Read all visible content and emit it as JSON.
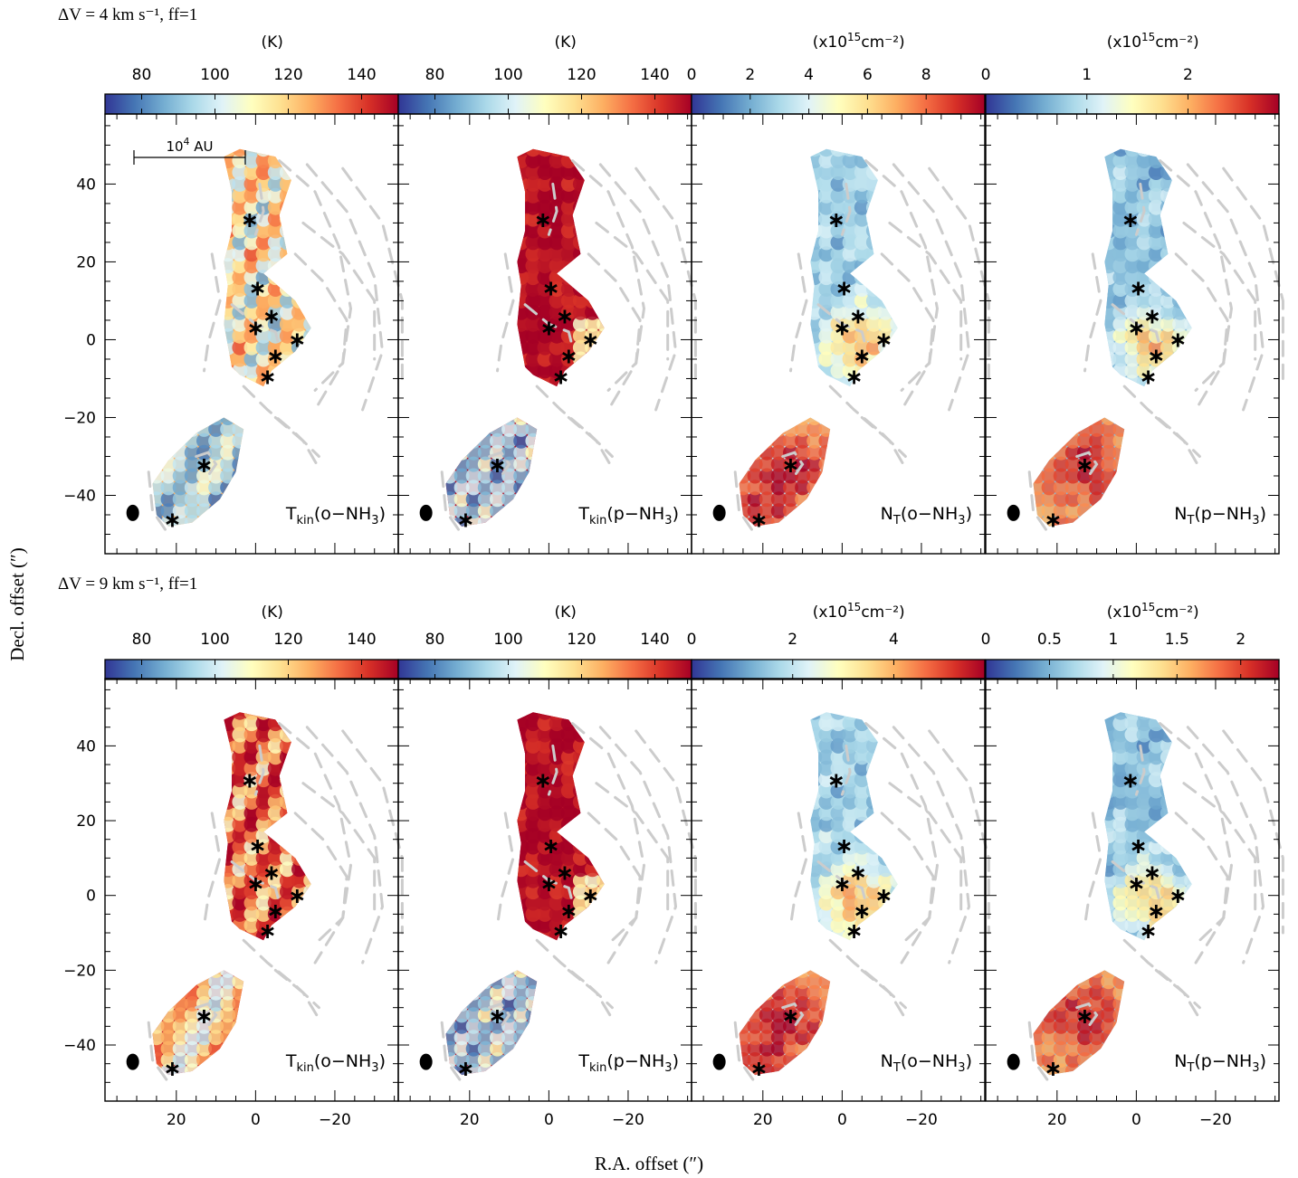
{
  "figure": {
    "ylabel": "Decl. offset (″)",
    "xlabel": "R.A. offset (″)",
    "scale_bar_label": "10",
    "scale_bar_exp": "4",
    "scale_bar_unit": " AU"
  },
  "colormap": {
    "name": "RdYlBu_r",
    "stops": [
      "#313695",
      "#4575b4",
      "#74add1",
      "#abd9e9",
      "#e0f3f8",
      "#ffffbf",
      "#fee090",
      "#fdae61",
      "#f46d43",
      "#d73027",
      "#a50026"
    ],
    "contour_color": "#cccccc",
    "marker_color": "#000000"
  },
  "rows": [
    {
      "label": "ΔV = 4 km s⁻¹, ff=1",
      "panels": [
        {
          "name": "Tkin(o-NH3)",
          "label_main": "T",
          "label_sub": "kin",
          "label_species": "(o−NH",
          "label_species_sub": "3",
          "label_close": ")",
          "cbar_unit": "(K)",
          "cbar_unit_exp": "",
          "cbar_unit_tail": "",
          "cbar_range": [
            70,
            150
          ],
          "cbar_ticks": [
            {
              "v": 80,
              "t": "80"
            },
            {
              "v": 100,
              "t": "100"
            },
            {
              "v": 120,
              "t": "120"
            },
            {
              "v": 140,
              "t": "140"
            }
          ]
        },
        {
          "name": "Tkin(p-NH3)",
          "label_main": "T",
          "label_sub": "kin",
          "label_species": "(p−NH",
          "label_species_sub": "3",
          "label_close": ")",
          "cbar_unit": "(K)",
          "cbar_unit_exp": "",
          "cbar_unit_tail": "",
          "cbar_range": [
            70,
            150
          ],
          "cbar_ticks": [
            {
              "v": 80,
              "t": "80"
            },
            {
              "v": 100,
              "t": "100"
            },
            {
              "v": 120,
              "t": "120"
            },
            {
              "v": 140,
              "t": "140"
            }
          ]
        },
        {
          "name": "NT(o-NH3)",
          "label_main": "N",
          "label_sub": "T",
          "label_species": "(o−NH",
          "label_species_sub": "3",
          "label_close": ")",
          "cbar_unit": "(x10",
          "cbar_unit_exp": "15",
          "cbar_unit_tail": "cm⁻²)",
          "cbar_range": [
            0,
            10
          ],
          "cbar_ticks": [
            {
              "v": 0,
              "t": "0"
            },
            {
              "v": 2,
              "t": "2"
            },
            {
              "v": 4,
              "t": "4"
            },
            {
              "v": 6,
              "t": "6"
            },
            {
              "v": 8,
              "t": "8"
            }
          ]
        },
        {
          "name": "NT(p-NH3)",
          "label_main": "N",
          "label_sub": "T",
          "label_species": "(p−NH",
          "label_species_sub": "3",
          "label_close": ")",
          "cbar_unit": "(x10",
          "cbar_unit_exp": "15",
          "cbar_unit_tail": "cm⁻²)",
          "cbar_range": [
            0,
            2.9
          ],
          "cbar_ticks": [
            {
              "v": 0,
              "t": "0"
            },
            {
              "v": 1,
              "t": "1"
            },
            {
              "v": 2,
              "t": "2"
            }
          ]
        }
      ]
    },
    {
      "label": "ΔV = 9 km s⁻¹, ff=1",
      "panels": [
        {
          "name": "Tkin(o-NH3)",
          "label_main": "T",
          "label_sub": "kin",
          "label_species": "(o−NH",
          "label_species_sub": "3",
          "label_close": ")",
          "cbar_unit": "(K)",
          "cbar_unit_exp": "",
          "cbar_unit_tail": "",
          "cbar_range": [
            70,
            150
          ],
          "cbar_ticks": [
            {
              "v": 80,
              "t": "80"
            },
            {
              "v": 100,
              "t": "100"
            },
            {
              "v": 120,
              "t": "120"
            },
            {
              "v": 140,
              "t": "140"
            }
          ]
        },
        {
          "name": "Tkin(p-NH3)",
          "label_main": "T",
          "label_sub": "kin",
          "label_species": "(p−NH",
          "label_species_sub": "3",
          "label_close": ")",
          "cbar_unit": "(K)",
          "cbar_unit_exp": "",
          "cbar_unit_tail": "",
          "cbar_range": [
            70,
            150
          ],
          "cbar_ticks": [
            {
              "v": 80,
              "t": "80"
            },
            {
              "v": 100,
              "t": "100"
            },
            {
              "v": 120,
              "t": "120"
            },
            {
              "v": 140,
              "t": "140"
            }
          ]
        },
        {
          "name": "NT(o-NH3)",
          "label_main": "N",
          "label_sub": "T",
          "label_species": "(o−NH",
          "label_species_sub": "3",
          "label_close": ")",
          "cbar_unit": "(x10",
          "cbar_unit_exp": "15",
          "cbar_unit_tail": "cm⁻²)",
          "cbar_range": [
            0,
            5.8
          ],
          "cbar_ticks": [
            {
              "v": 0,
              "t": "0"
            },
            {
              "v": 2,
              "t": "2"
            },
            {
              "v": 4,
              "t": "4"
            }
          ]
        },
        {
          "name": "NT(p-NH3)",
          "label_main": "N",
          "label_sub": "T",
          "label_species": "(p−NH",
          "label_species_sub": "3",
          "label_close": ")",
          "cbar_unit": "(x10",
          "cbar_unit_exp": "15",
          "cbar_unit_tail": "cm⁻²)",
          "cbar_range": [
            0,
            2.3
          ],
          "cbar_ticks": [
            {
              "v": 0,
              "t": "0"
            },
            {
              "v": 0.5,
              "t": "0.5"
            },
            {
              "v": 1,
              "t": "1"
            },
            {
              "v": 1.5,
              "t": "1.5"
            },
            {
              "v": 2,
              "t": "2"
            }
          ]
        }
      ]
    }
  ],
  "chart_data": {
    "type": "heatmap",
    "x_range": [
      38,
      -36
    ],
    "y_range": [
      -55,
      58
    ],
    "x_ticks": [
      {
        "v": 20,
        "t": "20"
      },
      {
        "v": 0,
        "t": "0"
      },
      {
        "v": -20,
        "t": "−20"
      }
    ],
    "y_ticks": [
      {
        "v": 40,
        "t": "40"
      },
      {
        "v": 20,
        "t": "20"
      },
      {
        "v": 0,
        "t": "0"
      },
      {
        "v": -20,
        "t": "−20"
      },
      {
        "v": -40,
        "t": "−40"
      }
    ],
    "sources": [
      {
        "x": 1.5,
        "y": 31
      },
      {
        "x": -0.5,
        "y": 13.5
      },
      {
        "x": 0,
        "y": 3.3
      },
      {
        "x": -4,
        "y": 6.3
      },
      {
        "x": -10.5,
        "y": 0.2
      },
      {
        "x": -5,
        "y": -4
      },
      {
        "x": -3,
        "y": -9.3
      },
      {
        "x": 13,
        "y": -32
      },
      {
        "x": 21,
        "y": -46
      }
    ],
    "beam": {
      "x": 31,
      "y": -44.5
    }
  }
}
